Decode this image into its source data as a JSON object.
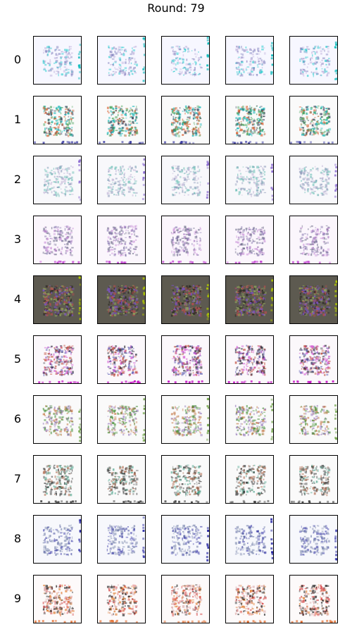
{
  "title": "Round: 79",
  "chart_data": {
    "type": "image_grid",
    "title": "Round: 79",
    "row_labels": [
      "0",
      "1",
      "2",
      "3",
      "4",
      "5",
      "6",
      "7",
      "8",
      "9"
    ],
    "columns_per_row": 5,
    "rows": [
      {
        "label": "0",
        "background": "#f7f7ff",
        "ink": [
          "#6a6ab0",
          "#b7a6d6",
          "#00c4c4"
        ],
        "intensity": 0.25,
        "edge": "#00b8b8"
      },
      {
        "label": "1",
        "background": "#fafafa",
        "ink": [
          "#2f3a55",
          "#4aa35a",
          "#d45a2a",
          "#00b0b0"
        ],
        "intensity": 0.6,
        "edge": "#3a3aa0"
      },
      {
        "label": "2",
        "background": "#f8f8fb",
        "ink": [
          "#7c8bb0",
          "#b7a8cf",
          "#4fb3a8"
        ],
        "intensity": 0.3,
        "edge": "#8a6ad0"
      },
      {
        "label": "3",
        "background": "#fbf6fc",
        "ink": [
          "#7a6aa6",
          "#c68ad6",
          "#5a5a7a"
        ],
        "intensity": 0.4,
        "edge": "#c040d0"
      },
      {
        "label": "4",
        "background": "#5d5a50",
        "ink": [
          "#2e2b26",
          "#8ea05a",
          "#b04f4f",
          "#7a52c0"
        ],
        "intensity": 0.95,
        "edge": "#b6d000"
      },
      {
        "label": "5",
        "background": "#fbf8fb",
        "ink": [
          "#1f1f2c",
          "#c04a3a",
          "#5a5ab0",
          "#d050d0"
        ],
        "intensity": 0.6,
        "edge": "#c000c0"
      },
      {
        "label": "6",
        "background": "#fafafa",
        "ink": [
          "#3c8a2c",
          "#8b6bb4",
          "#c0703a"
        ],
        "intensity": 0.45,
        "edge": "#6aa040"
      },
      {
        "label": "7",
        "background": "#fafafa",
        "ink": [
          "#2a2a2a",
          "#5a5a5a",
          "#4aa38a",
          "#a65a3a"
        ],
        "intensity": 0.5,
        "edge": "#3a3a3a"
      },
      {
        "label": "8",
        "background": "#f7f8fc",
        "ink": [
          "#8a95b6",
          "#5b6a9b",
          "#2a2aa0"
        ],
        "intensity": 0.35,
        "edge": "#2020a0"
      },
      {
        "label": "9",
        "background": "#fdfafa",
        "ink": [
          "#111111",
          "#e07a2a",
          "#d43a3a",
          "#d8a2a2"
        ],
        "intensity": 0.55,
        "edge": "#e06a2a"
      }
    ]
  }
}
